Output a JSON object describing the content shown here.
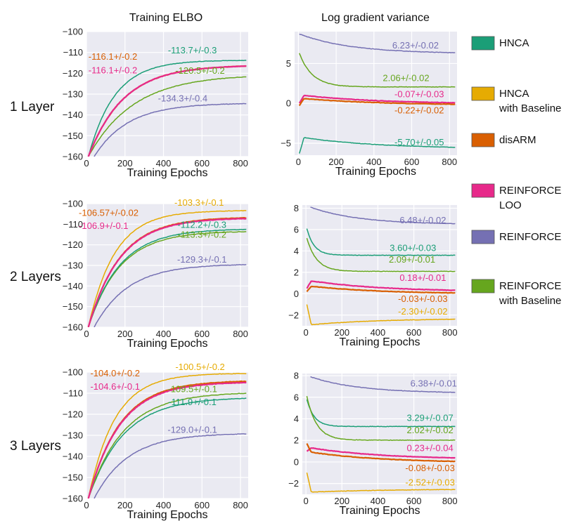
{
  "column_titles": [
    "Training ELBO",
    "Log gradient variance"
  ],
  "row_labels": [
    "1 Layer",
    "2 Layers",
    "3 Layers"
  ],
  "legend": [
    {
      "key": "hnca",
      "label": "HNCA"
    },
    {
      "key": "hnca_baseline",
      "label": "HNCA\nwith Baseline"
    },
    {
      "key": "disarm",
      "label": "disARM"
    },
    {
      "key": "reinforce_loo",
      "label": "REINFORCE\nLOO"
    },
    {
      "key": "reinforce",
      "label": "REINFORCE"
    },
    {
      "key": "reinforce_baseline",
      "label": "REINFORCE\nwith Baseline"
    }
  ],
  "colors": {
    "hnca": "#1b9e77",
    "hnca_baseline": "#e6ab02",
    "disarm": "#d95f02",
    "reinforce_loo": "#e7298a",
    "reinforce": "#7570b3",
    "reinforce_baseline": "#66a61e"
  },
  "chart_data": [
    {
      "type": "line",
      "row": 0,
      "col": 0,
      "xlabel": "Training Epochs",
      "ylabel": "",
      "xlim": [
        0,
        840
      ],
      "ylim": [
        -160,
        -100
      ],
      "xticks": [
        0,
        200,
        400,
        600,
        800
      ],
      "yticks": [
        -160,
        -150,
        -140,
        -130,
        -120,
        -110,
        -100
      ],
      "series": [
        {
          "key": "reinforce",
          "start_x": 40,
          "start": -160,
          "final": -134.3,
          "k": 4.5,
          "label": "-134.3+/-0.4"
        },
        {
          "key": "reinforce_baseline",
          "start_x": 10,
          "start": -160,
          "final": -120.5,
          "k": 3.5,
          "label": "-120.5+/-0.2"
        },
        {
          "key": "hnca",
          "start_x": 10,
          "start": -160,
          "final": -113.7,
          "k": 6,
          "label": "-113.7+/-0.3"
        },
        {
          "key": "disarm",
          "start_x": 10,
          "start": -160,
          "final": -116.1,
          "k": 4.5,
          "label": "-116.1+/-0.2"
        },
        {
          "key": "reinforce_loo",
          "start_x": 10,
          "start": -160,
          "final": -116.1,
          "k": 4.5,
          "label": "-116.1+/-0.2"
        }
      ]
    },
    {
      "type": "line",
      "row": 0,
      "col": 1,
      "xlabel": "Training Epochs",
      "ylabel": "",
      "xlim": [
        -20,
        840
      ],
      "ylim": [
        -6.5,
        9
      ],
      "xticks": [
        0,
        200,
        400,
        600,
        800
      ],
      "yticks": [
        -5,
        0,
        5
      ],
      "series": [
        {
          "key": "reinforce",
          "start_x": 5,
          "start": 8.7,
          "final": 6.23,
          "k": 3,
          "label": "6.23+/-0.02"
        },
        {
          "key": "reinforce_baseline",
          "start_x": 5,
          "start": 6.3,
          "final": 2.06,
          "k": 12,
          "label": "2.06+/-0.02"
        },
        {
          "key": "reinforce_loo",
          "start_x": 5,
          "start": 0.0,
          "final": -0.07,
          "k": 2,
          "peak": 1.0,
          "label": "-0.07+/-0.03"
        },
        {
          "key": "disarm",
          "start_x": 5,
          "start": -0.3,
          "final": -0.22,
          "k": 2,
          "peak": 0.6,
          "label": "-0.22+/-0.02"
        },
        {
          "key": "hnca",
          "start_x": 5,
          "start": -6.3,
          "final": -5.7,
          "k": 2,
          "peak": -4.3,
          "label": "-5.70+/-0.05"
        }
      ]
    },
    {
      "type": "line",
      "row": 1,
      "col": 0,
      "xlabel": "Training Epochs",
      "ylabel": "",
      "xlim": [
        0,
        840
      ],
      "ylim": [
        -160,
        -100
      ],
      "xticks": [
        0,
        200,
        400,
        600,
        800
      ],
      "yticks": [
        -160,
        -150,
        -140,
        -130,
        -120,
        -110,
        -100
      ],
      "series": [
        {
          "key": "reinforce",
          "start_x": 40,
          "start": -160,
          "final": -129.3,
          "k": 4.5,
          "label": "-129.3+/-0.1"
        },
        {
          "key": "reinforce_baseline",
          "start_x": 10,
          "start": -160,
          "final": -113.3,
          "k": 5,
          "label": "-113.3+/-0.2"
        },
        {
          "key": "hnca",
          "start_x": 10,
          "start": -160,
          "final": -112.2,
          "k": 5,
          "label": "-112.2+/-0.3"
        },
        {
          "key": "hnca_baseline",
          "start_x": 10,
          "start": -160,
          "final": -103.3,
          "k": 6,
          "label": "-103.3+/-0.1"
        },
        {
          "key": "disarm",
          "start_x": 10,
          "start": -160,
          "final": -106.57,
          "k": 5,
          "label": "-106.57+/-0.02"
        },
        {
          "key": "reinforce_loo",
          "start_x": 10,
          "start": -160,
          "final": -106.9,
          "k": 5,
          "label": "-106.9+/-0.1"
        }
      ]
    },
    {
      "type": "line",
      "row": 1,
      "col": 1,
      "xlabel": "Training Epochs",
      "ylabel": "",
      "xlim": [
        -20,
        840
      ],
      "ylim": [
        -3,
        8.3
      ],
      "xticks": [
        0,
        200,
        400,
        600,
        800
      ],
      "yticks": [
        -2,
        0,
        2,
        4,
        6,
        8
      ],
      "series": [
        {
          "key": "reinforce",
          "start_x": 25,
          "start": 8.1,
          "final": 6.48,
          "k": 3,
          "label": "6.48+/-0.02"
        },
        {
          "key": "hnca",
          "start_x": 5,
          "start": 6.1,
          "final": 3.6,
          "k": 20,
          "label": "3.60+/-0.03"
        },
        {
          "key": "reinforce_baseline",
          "start_x": 5,
          "start": 5.2,
          "final": 2.09,
          "k": 15,
          "label": "2.09+/-0.01"
        },
        {
          "key": "reinforce_loo",
          "start_x": 5,
          "start": 0.5,
          "final": 0.18,
          "k": 2,
          "peak": 1.2,
          "label": "0.18+/-0.01"
        },
        {
          "key": "disarm",
          "start_x": 5,
          "start": 0.2,
          "final": -0.03,
          "k": 2,
          "peak": 0.7,
          "label": "-0.03+/-0.03"
        },
        {
          "key": "hnca_baseline",
          "start_x": 5,
          "start": -1.0,
          "final": -2.3,
          "k": 2,
          "peak": -2.9,
          "label": "-2.30+/-0.02"
        }
      ]
    },
    {
      "type": "line",
      "row": 2,
      "col": 0,
      "xlabel": "Training Epochs",
      "ylabel": "",
      "xlim": [
        0,
        840
      ],
      "ylim": [
        -160,
        -100
      ],
      "xticks": [
        0,
        200,
        400,
        600,
        800
      ],
      "yticks": [
        -160,
        -150,
        -140,
        -130,
        -120,
        -110,
        -100
      ],
      "series": [
        {
          "key": "reinforce",
          "start_x": 40,
          "start": -160,
          "final": -129.0,
          "k": 4.5,
          "label": "-129.0+/-0.1"
        },
        {
          "key": "hnca",
          "start_x": 10,
          "start": -160,
          "final": -111.9,
          "k": 4.5,
          "label": "-111.9+/-0.1"
        },
        {
          "key": "reinforce_baseline",
          "start_x": 10,
          "start": -160,
          "final": -109.5,
          "k": 4.5,
          "label": "-109.5+/-0.1"
        },
        {
          "key": "hnca_baseline",
          "start_x": 10,
          "start": -160,
          "final": -100.5,
          "k": 6,
          "label": "-100.5+/-0.2"
        },
        {
          "key": "disarm",
          "start_x": 10,
          "start": -160,
          "final": -104.0,
          "k": 5,
          "label": "-104.0+/-0.2"
        },
        {
          "key": "reinforce_loo",
          "start_x": 10,
          "start": -160,
          "final": -104.6,
          "k": 5,
          "label": "-104.6+/-0.1"
        }
      ]
    },
    {
      "type": "line",
      "row": 2,
      "col": 1,
      "xlabel": "Training Epochs",
      "ylabel": "",
      "xlim": [
        -20,
        840
      ],
      "ylim": [
        -3,
        8.2
      ],
      "xticks": [
        0,
        200,
        400,
        600,
        800
      ],
      "yticks": [
        -2,
        0,
        2,
        4,
        6,
        8
      ],
      "series": [
        {
          "key": "reinforce",
          "start_x": 25,
          "start": 7.9,
          "final": 6.38,
          "k": 3,
          "label": "6.38+/-0.01"
        },
        {
          "key": "hnca",
          "start_x": 5,
          "start": 5.8,
          "final": 3.29,
          "k": 20,
          "label": "3.29+/-0.07"
        },
        {
          "key": "reinforce_baseline",
          "start_x": 5,
          "start": 6.1,
          "final": 2.02,
          "k": 15,
          "label": "2.02+/-0.02"
        },
        {
          "key": "reinforce_loo",
          "start_x": 5,
          "start": 1.0,
          "final": 0.23,
          "k": 2,
          "peak": 1.3,
          "label": "0.23+/-0.04"
        },
        {
          "key": "disarm",
          "start_x": 5,
          "start": 1.7,
          "final": -0.08,
          "k": 2,
          "peak": 0.9,
          "label": "-0.08+/-0.03"
        },
        {
          "key": "hnca_baseline",
          "start_x": 5,
          "start": -1.0,
          "final": -2.52,
          "k": 2,
          "peak": -2.8,
          "label": "-2.52+/-0.03"
        }
      ]
    }
  ]
}
